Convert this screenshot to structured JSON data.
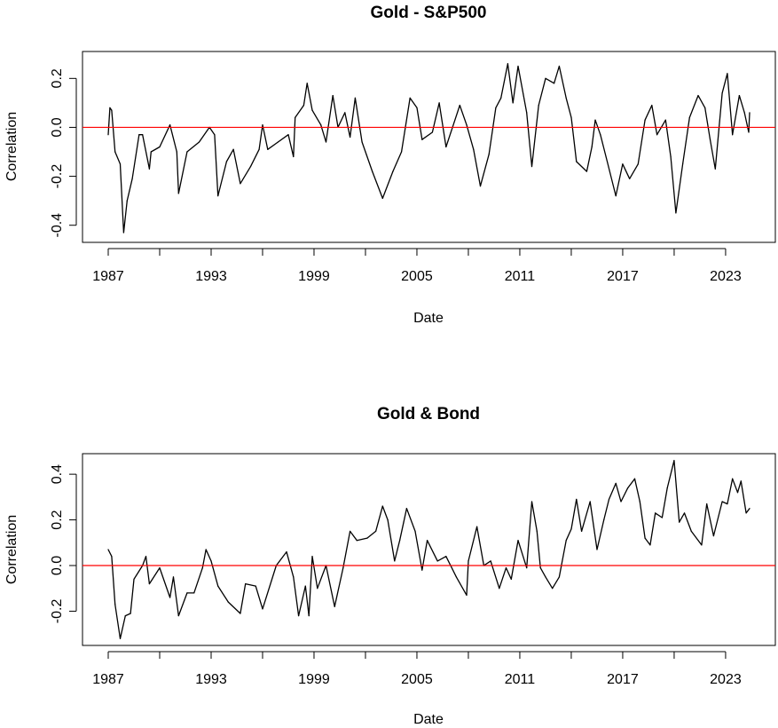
{
  "chart_data": [
    {
      "type": "line",
      "title": "Gold - S&P500",
      "xlabel": "Date",
      "ylabel": "Correlation",
      "xlim": [
        1985.5,
        2025.9
      ],
      "ylim": [
        -0.47,
        0.31
      ],
      "x_ticks": [
        1987,
        1990,
        1993,
        1996,
        1999,
        2002,
        2005,
        2008,
        2011,
        2014,
        2017,
        2020,
        2023
      ],
      "x_tick_labels": [
        "1987",
        "1993",
        "1999",
        "2005",
        "2011",
        "2017",
        "2023"
      ],
      "y_ticks": [
        -0.4,
        -0.2,
        0.0,
        0.2
      ],
      "y_tick_labels": [
        "-0.4",
        "-0.2",
        "0.0",
        "0.2"
      ],
      "reference_line": {
        "y": 0,
        "color": "#ff0000"
      },
      "line_color": "#000000",
      "series": [
        {
          "name": "Gold - S&P500",
          "x": [
            1987.0,
            1987.1,
            1987.2,
            1987.4,
            1987.7,
            1987.9,
            1988.1,
            1988.4,
            1988.8,
            1989.0,
            1989.4,
            1989.5,
            1990.0,
            1990.6,
            1991.0,
            1991.1,
            1991.6,
            1992.3,
            1992.9,
            1993.2,
            1993.4,
            1993.9,
            1994.3,
            1994.7,
            1995.3,
            1995.8,
            1996.0,
            1996.3,
            1996.9,
            1997.5,
            1997.8,
            1997.9,
            1998.4,
            1998.6,
            1998.9,
            1999.4,
            1999.7,
            2000.1,
            2000.4,
            2000.8,
            2001.1,
            2001.4,
            2001.8,
            2002.4,
            2003.0,
            2003.6,
            2004.1,
            2004.6,
            2005.0,
            2005.3,
            2005.9,
            2006.3,
            2006.7,
            2007.5,
            2007.9,
            2008.3,
            2008.7,
            2009.2,
            2009.6,
            2009.9,
            2010.3,
            2010.6,
            2010.9,
            2011.4,
            2011.7,
            2012.1,
            2012.5,
            2013.0,
            2013.3,
            2013.7,
            2014.0,
            2014.3,
            2014.9,
            2015.2,
            2015.4,
            2015.7,
            2016.1,
            2016.6,
            2017.0,
            2017.4,
            2017.9,
            2018.3,
            2018.7,
            2019.0,
            2019.5,
            2019.8,
            2020.1,
            2020.5,
            2020.9,
            2021.4,
            2021.8,
            2022.1,
            2022.4,
            2022.8,
            2023.1,
            2023.4,
            2023.8,
            2024.1,
            2024.35,
            2024.4
          ],
          "y": [
            -0.03,
            0.08,
            0.07,
            -0.1,
            -0.15,
            -0.43,
            -0.3,
            -0.21,
            -0.03,
            -0.03,
            -0.17,
            -0.1,
            -0.08,
            0.01,
            -0.1,
            -0.27,
            -0.1,
            -0.06,
            0.0,
            -0.03,
            -0.28,
            -0.14,
            -0.09,
            -0.23,
            -0.16,
            -0.09,
            0.01,
            -0.09,
            -0.06,
            -0.03,
            -0.12,
            0.04,
            0.09,
            0.18,
            0.07,
            0.01,
            -0.06,
            0.13,
            0.0,
            0.06,
            -0.04,
            0.12,
            -0.06,
            -0.18,
            -0.29,
            -0.18,
            -0.1,
            0.12,
            0.08,
            -0.05,
            -0.02,
            0.1,
            -0.08,
            0.09,
            0.01,
            -0.09,
            -0.24,
            -0.11,
            0.08,
            0.12,
            0.26,
            0.1,
            0.25,
            0.06,
            -0.16,
            0.09,
            0.2,
            0.18,
            0.25,
            0.12,
            0.04,
            -0.14,
            -0.18,
            -0.08,
            0.03,
            -0.03,
            -0.14,
            -0.28,
            -0.15,
            -0.21,
            -0.15,
            0.03,
            0.09,
            -0.03,
            0.03,
            -0.12,
            -0.35,
            -0.15,
            0.04,
            0.13,
            0.08,
            -0.05,
            -0.17,
            0.14,
            0.22,
            -0.03,
            0.13,
            0.06,
            -0.02,
            0.06
          ]
        }
      ]
    },
    {
      "type": "line",
      "title": "Gold & Bond",
      "xlabel": "Date",
      "ylabel": "Correlation",
      "xlim": [
        1985.5,
        2025.9
      ],
      "ylim": [
        -0.35,
        0.49
      ],
      "x_ticks": [
        1987,
        1990,
        1993,
        1996,
        1999,
        2002,
        2005,
        2008,
        2011,
        2014,
        2017,
        2020,
        2023
      ],
      "x_tick_labels": [
        "1987",
        "1993",
        "1999",
        "2005",
        "2011",
        "2017",
        "2023"
      ],
      "y_ticks": [
        -0.2,
        0.0,
        0.2,
        0.4
      ],
      "y_tick_labels": [
        "-0.2",
        "0.0",
        "0.2",
        "0.4"
      ],
      "reference_line": {
        "y": 0,
        "color": "#ff0000"
      },
      "line_color": "#000000",
      "series": [
        {
          "name": "Gold & Bond",
          "x": [
            1987.0,
            1987.2,
            1987.4,
            1987.7,
            1988.0,
            1988.3,
            1988.5,
            1989.0,
            1989.2,
            1989.4,
            1990.0,
            1990.6,
            1990.8,
            1991.1,
            1991.6,
            1992.0,
            1992.5,
            1992.7,
            1993.0,
            1993.4,
            1994.0,
            1994.7,
            1995.0,
            1995.6,
            1996.0,
            1996.8,
            1997.4,
            1997.8,
            1998.1,
            1998.5,
            1998.7,
            1998.9,
            1999.2,
            1999.7,
            2000.2,
            2000.7,
            2001.1,
            2001.5,
            2002.1,
            2002.6,
            2003.0,
            2003.3,
            2003.7,
            2004.0,
            2004.4,
            2004.9,
            2005.3,
            2005.6,
            2006.2,
            2006.7,
            2007.3,
            2007.9,
            2008.0,
            2008.5,
            2008.9,
            2009.3,
            2009.8,
            2010.2,
            2010.5,
            2010.9,
            2011.4,
            2011.7,
            2012.0,
            2012.2,
            2012.5,
            2012.9,
            2013.3,
            2013.7,
            2014.0,
            2014.3,
            2014.6,
            2015.1,
            2015.5,
            2015.9,
            2016.2,
            2016.6,
            2016.9,
            2017.3,
            2017.7,
            2018.0,
            2018.3,
            2018.6,
            2018.9,
            2019.3,
            2019.6,
            2020.0,
            2020.3,
            2020.6,
            2021.0,
            2021.6,
            2021.9,
            2022.3,
            2022.8,
            2023.1,
            2023.4,
            2023.7,
            2023.9,
            2024.2,
            2024.4
          ],
          "y": [
            0.07,
            0.04,
            -0.17,
            -0.32,
            -0.22,
            -0.21,
            -0.06,
            0.0,
            0.04,
            -0.08,
            -0.01,
            -0.14,
            -0.05,
            -0.22,
            -0.12,
            -0.12,
            -0.01,
            0.07,
            0.02,
            -0.09,
            -0.16,
            -0.21,
            -0.08,
            -0.09,
            -0.19,
            0.0,
            0.06,
            -0.05,
            -0.22,
            -0.09,
            -0.22,
            0.04,
            -0.1,
            0.0,
            -0.18,
            -0.01,
            0.15,
            0.11,
            0.12,
            0.15,
            0.26,
            0.2,
            0.02,
            0.11,
            0.25,
            0.15,
            -0.02,
            0.11,
            0.02,
            0.04,
            -0.05,
            -0.13,
            0.02,
            0.17,
            0.0,
            0.02,
            -0.1,
            -0.01,
            -0.06,
            0.11,
            -0.01,
            0.28,
            0.15,
            -0.01,
            -0.05,
            -0.1,
            -0.05,
            0.11,
            0.16,
            0.29,
            0.15,
            0.28,
            0.07,
            0.2,
            0.29,
            0.36,
            0.28,
            0.34,
            0.38,
            0.28,
            0.12,
            0.09,
            0.23,
            0.21,
            0.34,
            0.46,
            0.19,
            0.23,
            0.15,
            0.09,
            0.27,
            0.13,
            0.28,
            0.27,
            0.38,
            0.32,
            0.37,
            0.23,
            0.25
          ]
        }
      ]
    }
  ]
}
